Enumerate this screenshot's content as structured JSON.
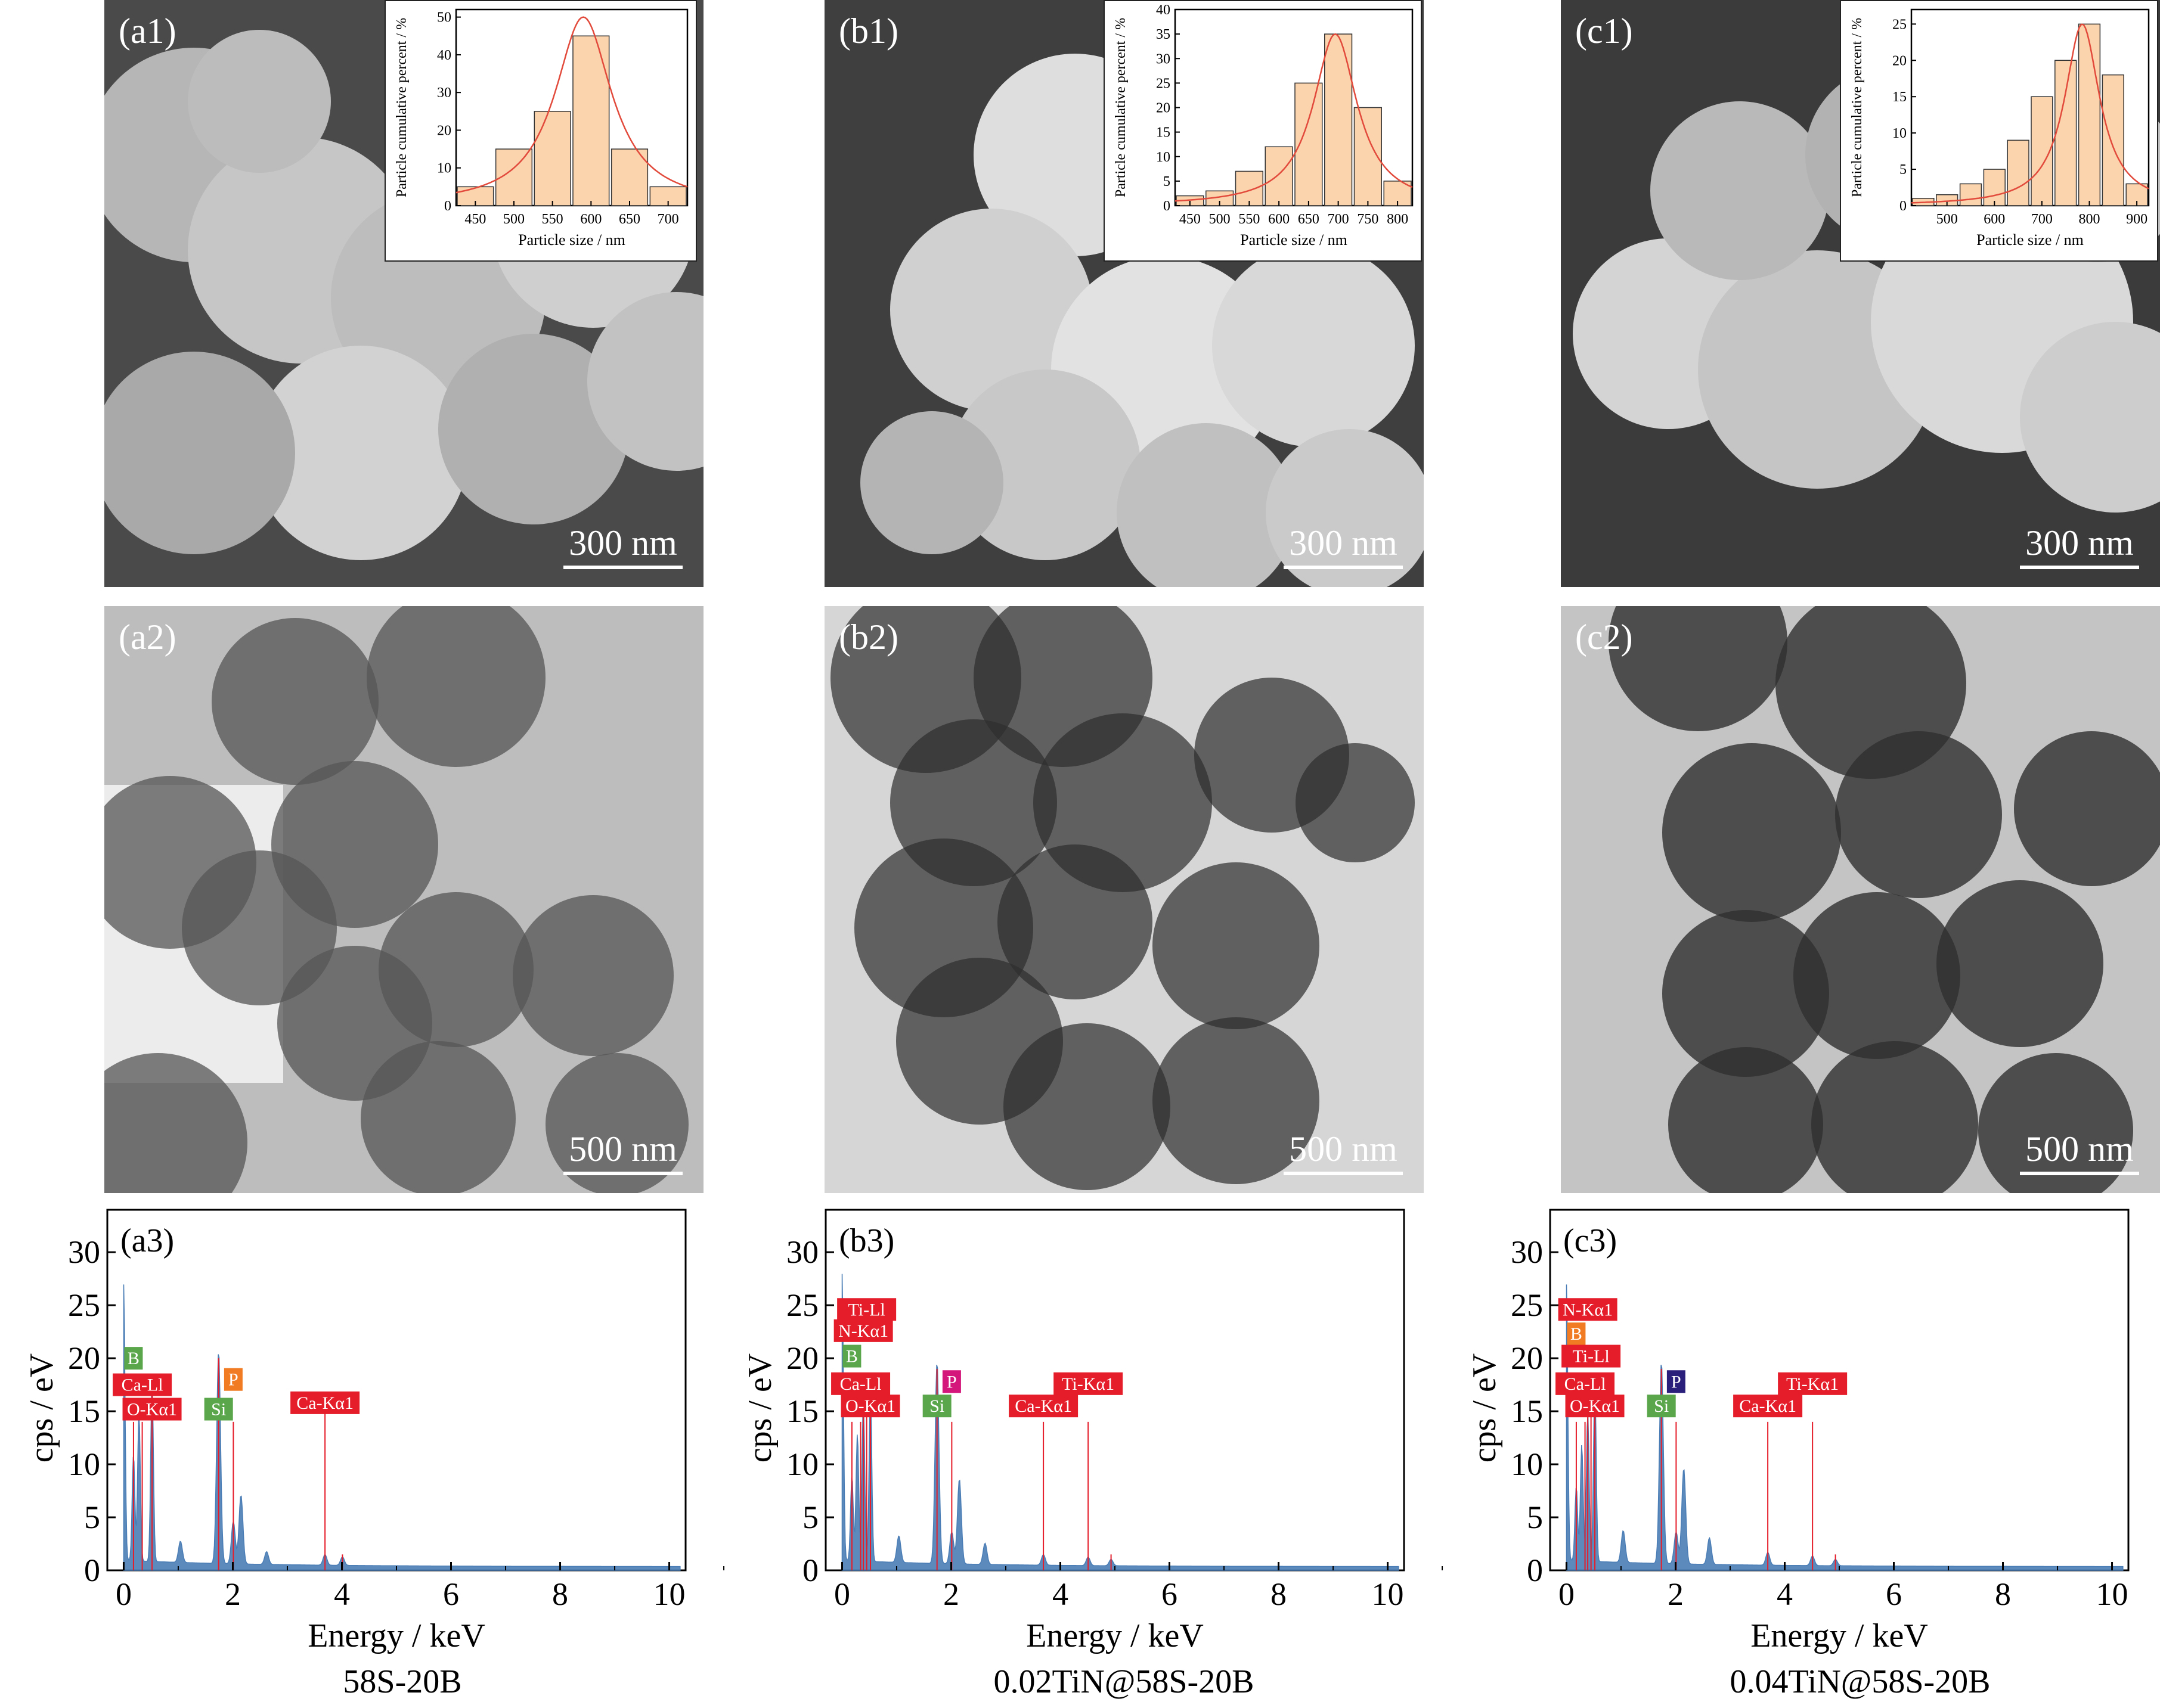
{
  "row1": [
    {
      "label": "(a1)",
      "scale": "300 nm"
    },
    {
      "label": "(b1)",
      "scale": "300 nm"
    },
    {
      "label": "(c1)",
      "scale": "300 nm"
    }
  ],
  "row2": [
    {
      "label": "(a2)",
      "scale": "500 nm"
    },
    {
      "label": "(b2)",
      "scale": "500 nm"
    },
    {
      "label": "(c2)",
      "scale": "500 nm"
    }
  ],
  "captions": [
    "58S-20B",
    "0.02TiN@58S-20B",
    "0.04TiN@58S-20B"
  ],
  "colors": {
    "bar_fill": "#fbd3ad",
    "bar_edge": "#333333",
    "fit_curve": "#e24a3b",
    "spectrum": "#4a7db5",
    "marker_red": "#e51d2a",
    "marker_green": "#5aa64a",
    "marker_orange": "#f07b22",
    "marker_magenta": "#d4177a",
    "marker_navy": "#2a1f7a"
  },
  "chart_data": [
    {
      "id": "a1",
      "type": "bar",
      "ylabel": "Particle cumulative percent / %",
      "xlabel": "Particle size / nm",
      "categories": [
        450,
        500,
        550,
        600,
        650,
        700
      ],
      "values": [
        5,
        15,
        25,
        45,
        15,
        5
      ],
      "xticks": [
        450,
        500,
        550,
        600,
        650,
        700
      ],
      "yticks": [
        0,
        10,
        20,
        30,
        40,
        50
      ],
      "ylim": [
        0,
        52
      ],
      "fit": {
        "peak": 590,
        "height": 50
      }
    },
    {
      "id": "b1",
      "type": "bar",
      "ylabel": "Particle cumulative percent / %",
      "xlabel": "Particle size / nm",
      "categories": [
        450,
        500,
        550,
        600,
        650,
        700,
        750,
        800
      ],
      "values": [
        2,
        3,
        7,
        12,
        25,
        35,
        20,
        5
      ],
      "xticks": [
        450,
        500,
        550,
        600,
        650,
        700,
        750,
        800
      ],
      "yticks": [
        0,
        5,
        10,
        15,
        20,
        25,
        30,
        35,
        40
      ],
      "ylim": [
        0,
        40
      ],
      "fit": {
        "peak": 695,
        "height": 35
      }
    },
    {
      "id": "c1",
      "type": "bar",
      "ylabel": "Particle cumulative percent / %",
      "xlabel": "Particle size / nm",
      "categories": [
        450,
        500,
        550,
        600,
        650,
        700,
        750,
        800,
        850,
        900
      ],
      "values": [
        1,
        1.5,
        3,
        5,
        9,
        15,
        20,
        25,
        18,
        3
      ],
      "xticks": [
        500,
        600,
        700,
        800,
        900
      ],
      "yticks": [
        0,
        5,
        10,
        15,
        20,
        25
      ],
      "ylim": [
        0,
        27
      ],
      "fit": {
        "peak": 785,
        "height": 25
      }
    },
    {
      "id": "a3",
      "type": "line",
      "title": "(a3)",
      "xlabel": "Energy / keV",
      "ylabel": "cps / eV",
      "xlim": [
        -0.3,
        10.3
      ],
      "ylim": [
        0,
        34
      ],
      "xticks": [
        0,
        2,
        4,
        6,
        8,
        10
      ],
      "yticks": [
        0,
        5,
        10,
        15,
        20,
        25,
        30
      ],
      "peaks": [
        [
          0,
          26
        ],
        [
          0.18,
          10
        ],
        [
          0.28,
          14
        ],
        [
          0.52,
          17
        ],
        [
          1.04,
          2
        ],
        [
          1.74,
          20
        ],
        [
          2.01,
          4
        ],
        [
          2.15,
          6.5
        ],
        [
          2.62,
          1.2
        ],
        [
          3.69,
          1
        ],
        [
          4.01,
          0.8
        ]
      ],
      "lines": [
        [
          0.18,
          14
        ],
        [
          0.34,
          14
        ],
        [
          0.52,
          17
        ],
        [
          1.74,
          20
        ],
        [
          2.01,
          14
        ],
        [
          3.69,
          16
        ],
        [
          4.01,
          1.5
        ]
      ],
      "markers": [
        {
          "text": "B",
          "x": 0.18,
          "y": 20,
          "color": "marker_green"
        },
        {
          "text": "Ca-Ll",
          "x": 0.34,
          "y": 17.5,
          "color": "marker_red"
        },
        {
          "text": "O-Kα1",
          "x": 0.52,
          "y": 15.2,
          "color": "marker_red"
        },
        {
          "text": "Si",
          "x": 1.74,
          "y": 15.2,
          "color": "marker_green"
        },
        {
          "text": "P",
          "x": 2.01,
          "y": 18,
          "color": "marker_orange"
        },
        {
          "text": "Ca-Kα1",
          "x": 3.69,
          "y": 15.8,
          "color": "marker_red"
        }
      ]
    },
    {
      "id": "b3",
      "type": "line",
      "title": "(b3)",
      "xlabel": "Energy / keV",
      "ylabel": "cps / eV",
      "xlim": [
        -0.3,
        10.3
      ],
      "ylim": [
        0,
        34
      ],
      "xticks": [
        0,
        2,
        4,
        6,
        8,
        10
      ],
      "yticks": [
        0,
        5,
        10,
        15,
        20,
        25,
        30
      ],
      "peaks": [
        [
          0,
          27
        ],
        [
          0.18,
          8
        ],
        [
          0.28,
          12
        ],
        [
          0.39,
          15
        ],
        [
          0.52,
          16
        ],
        [
          1.04,
          2.5
        ],
        [
          1.74,
          19
        ],
        [
          2.01,
          3
        ],
        [
          2.15,
          8
        ],
        [
          2.62,
          2
        ],
        [
          3.69,
          1
        ],
        [
          4.51,
          0.8
        ],
        [
          4.93,
          0.6
        ]
      ],
      "lines": [
        [
          0.18,
          14
        ],
        [
          0.34,
          14
        ],
        [
          0.39,
          16
        ],
        [
          0.45,
          16
        ],
        [
          0.52,
          17
        ],
        [
          1.74,
          19
        ],
        [
          2.01,
          14
        ],
        [
          3.69,
          14
        ],
        [
          4.51,
          14
        ],
        [
          4.93,
          1.5
        ]
      ],
      "markers": [
        {
          "text": "Ti-Ll",
          "x": 0.45,
          "y": 24.6,
          "color": "marker_red"
        },
        {
          "text": "N-Kα1",
          "x": 0.39,
          "y": 22.6,
          "color": "marker_red"
        },
        {
          "text": "B",
          "x": 0.18,
          "y": 20.2,
          "color": "marker_green"
        },
        {
          "text": "Ca-Ll",
          "x": 0.34,
          "y": 17.6,
          "color": "marker_red"
        },
        {
          "text": "O-Kα1",
          "x": 0.52,
          "y": 15.5,
          "color": "marker_red"
        },
        {
          "text": "Si",
          "x": 1.74,
          "y": 15.5,
          "color": "marker_green"
        },
        {
          "text": "P",
          "x": 2.01,
          "y": 17.8,
          "color": "marker_magenta"
        },
        {
          "text": "Ca-Kα1",
          "x": 3.69,
          "y": 15.5,
          "color": "marker_red"
        },
        {
          "text": "Ti-Kα1",
          "x": 4.51,
          "y": 17.6,
          "color": "marker_red"
        }
      ]
    },
    {
      "id": "c3",
      "type": "line",
      "title": "(c3)",
      "xlabel": "Energy / keV",
      "ylabel": "cps / eV",
      "xlim": [
        -0.3,
        10.3
      ],
      "ylim": [
        0,
        34
      ],
      "xticks": [
        0,
        2,
        4,
        6,
        8,
        10
      ],
      "yticks": [
        0,
        5,
        10,
        15,
        20,
        25,
        30
      ],
      "peaks": [
        [
          0,
          26
        ],
        [
          0.18,
          7
        ],
        [
          0.28,
          11
        ],
        [
          0.39,
          14
        ],
        [
          0.52,
          17
        ],
        [
          1.04,
          3
        ],
        [
          1.74,
          19
        ],
        [
          2.01,
          3
        ],
        [
          2.15,
          9
        ],
        [
          2.62,
          2.5
        ],
        [
          3.69,
          1.2
        ],
        [
          4.51,
          0.9
        ],
        [
          4.93,
          0.6
        ]
      ],
      "lines": [
        [
          0.18,
          14
        ],
        [
          0.34,
          14
        ],
        [
          0.39,
          16
        ],
        [
          0.45,
          15
        ],
        [
          0.52,
          17
        ],
        [
          1.74,
          19
        ],
        [
          2.01,
          14
        ],
        [
          3.69,
          14
        ],
        [
          4.51,
          14
        ],
        [
          4.93,
          1.5
        ]
      ],
      "markers": [
        {
          "text": "N-Kα1",
          "x": 0.39,
          "y": 24.6,
          "color": "marker_red"
        },
        {
          "text": "B",
          "x": 0.18,
          "y": 22.3,
          "color": "marker_orange"
        },
        {
          "text": "Ti-Ll",
          "x": 0.45,
          "y": 20.2,
          "color": "marker_red"
        },
        {
          "text": "Ca-Ll",
          "x": 0.34,
          "y": 17.6,
          "color": "marker_red"
        },
        {
          "text": "O-Kα1",
          "x": 0.52,
          "y": 15.5,
          "color": "marker_red"
        },
        {
          "text": "Si",
          "x": 1.74,
          "y": 15.5,
          "color": "marker_green"
        },
        {
          "text": "P",
          "x": 2.01,
          "y": 17.8,
          "color": "marker_navy"
        },
        {
          "text": "Ca-Kα1",
          "x": 3.69,
          "y": 15.5,
          "color": "marker_red"
        },
        {
          "text": "Ti-Kα1",
          "x": 4.51,
          "y": 17.6,
          "color": "marker_red"
        }
      ]
    }
  ]
}
